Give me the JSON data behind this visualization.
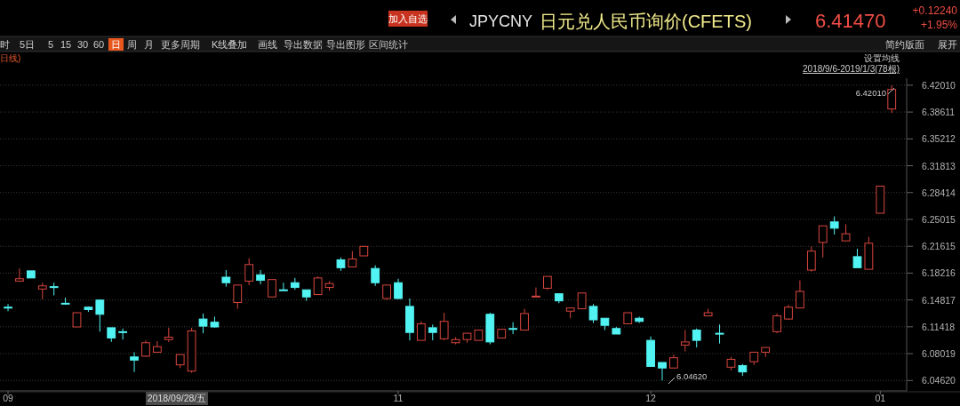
{
  "chart_data": {
    "type": "candlestick",
    "title": "日元兑人民币询价(CFETS)",
    "subtitle": "JPYCNY",
    "categories": [
      "09",
      null,
      null,
      null,
      null,
      null,
      null,
      null,
      null,
      null,
      null,
      null,
      null,
      null,
      null,
      null,
      null,
      null,
      null,
      null,
      null,
      null,
      null,
      null,
      null,
      null,
      null,
      null,
      null,
      null,
      null,
      null,
      null,
      null,
      "11",
      null,
      null,
      null,
      null,
      null,
      null,
      null,
      null,
      null,
      null,
      null,
      null,
      null,
      null,
      null,
      null,
      null,
      null,
      null,
      null,
      null,
      "12",
      null,
      null,
      null,
      null,
      null,
      null,
      null,
      null,
      null,
      null,
      null,
      null,
      null,
      null,
      null,
      null,
      null,
      null,
      null,
      "01",
      null
    ],
    "ohlc": [
      [
        6.139,
        6.143,
        6.134,
        6.138
      ],
      [
        6.172,
        6.188,
        6.172,
        6.175
      ],
      [
        6.185,
        6.185,
        6.176,
        6.176
      ],
      [
        6.162,
        6.17,
        6.149,
        6.166
      ],
      [
        6.165,
        6.17,
        6.154,
        6.164
      ],
      [
        6.144,
        6.151,
        6.142,
        6.143
      ],
      [
        6.114,
        6.132,
        6.114,
        6.132
      ],
      [
        6.139,
        6.14,
        6.133,
        6.136
      ],
      [
        6.148,
        6.149,
        6.108,
        6.13
      ],
      [
        6.113,
        6.113,
        6.095,
        6.1
      ],
      [
        6.108,
        6.112,
        6.098,
        6.107
      ],
      [
        6.076,
        6.082,
        6.057,
        6.072
      ],
      [
        6.077,
        6.097,
        6.076,
        6.094
      ],
      [
        6.082,
        6.096,
        6.082,
        6.089
      ],
      [
        6.098,
        6.113,
        6.095,
        6.101
      ],
      [
        6.066,
        6.079,
        6.062,
        6.079
      ],
      [
        6.058,
        6.113,
        6.056,
        6.109
      ],
      [
        6.124,
        6.131,
        6.106,
        6.115
      ],
      [
        6.12,
        6.127,
        6.113,
        6.114
      ],
      [
        6.177,
        6.186,
        6.165,
        6.17
      ],
      [
        6.145,
        6.167,
        6.137,
        6.167
      ],
      [
        6.172,
        6.201,
        6.167,
        6.193
      ],
      [
        6.18,
        6.186,
        6.168,
        6.173
      ],
      [
        6.152,
        6.174,
        6.152,
        6.174
      ],
      [
        6.161,
        6.17,
        6.16,
        6.16
      ],
      [
        6.17,
        6.176,
        6.161,
        6.164
      ],
      [
        6.161,
        6.161,
        6.147,
        6.152
      ],
      [
        6.155,
        6.178,
        6.155,
        6.176
      ],
      [
        6.164,
        6.172,
        6.16,
        6.169
      ],
      [
        6.199,
        6.202,
        6.185,
        6.189
      ],
      [
        6.19,
        6.21,
        6.19,
        6.2
      ],
      [
        6.204,
        6.216,
        6.204,
        6.216
      ],
      [
        6.188,
        6.192,
        6.166,
        6.17
      ],
      [
        6.15,
        6.167,
        6.148,
        6.167
      ],
      [
        6.17,
        6.175,
        6.149,
        6.15
      ],
      [
        6.14,
        6.15,
        6.097,
        6.107
      ],
      [
        6.097,
        6.121,
        6.097,
        6.118
      ],
      [
        6.113,
        6.117,
        6.097,
        6.107
      ],
      [
        6.099,
        6.132,
        6.097,
        6.121
      ],
      [
        6.094,
        6.101,
        6.092,
        6.098
      ],
      [
        6.098,
        6.106,
        6.094,
        6.106
      ],
      [
        6.097,
        6.11,
        6.097,
        6.11
      ],
      [
        6.13,
        6.132,
        6.092,
        6.095
      ],
      [
        6.1,
        6.111,
        6.1,
        6.111
      ],
      [
        6.112,
        6.12,
        6.105,
        6.111
      ],
      [
        6.11,
        6.137,
        6.11,
        6.131
      ],
      [
        6.152,
        6.164,
        6.152,
        6.153
      ],
      [
        6.163,
        6.178,
        6.161,
        6.178
      ],
      [
        6.156,
        6.156,
        6.144,
        6.147
      ],
      [
        6.134,
        6.138,
        6.125,
        6.138
      ],
      [
        6.137,
        6.157,
        6.137,
        6.157
      ],
      [
        6.14,
        6.143,
        6.119,
        6.123
      ],
      [
        6.125,
        6.125,
        6.11,
        6.116
      ],
      [
        6.112,
        6.114,
        6.105,
        6.105
      ],
      [
        6.118,
        6.132,
        6.118,
        6.132
      ],
      [
        6.125,
        6.127,
        6.119,
        6.121
      ],
      [
        6.097,
        6.102,
        6.064,
        6.064
      ],
      [
        6.069,
        6.069,
        6.0462,
        6.062
      ],
      [
        6.062,
        6.079,
        6.062,
        6.075
      ],
      [
        6.091,
        6.11,
        6.083,
        6.095
      ],
      [
        6.11,
        6.112,
        6.088,
        6.097
      ],
      [
        6.128,
        6.137,
        6.128,
        6.132
      ],
      [
        6.106,
        6.117,
        6.093,
        6.105
      ],
      [
        6.063,
        6.076,
        6.059,
        6.073
      ],
      [
        6.065,
        6.067,
        6.052,
        6.057
      ],
      [
        6.07,
        6.082,
        6.066,
        6.082
      ],
      [
        6.082,
        6.088,
        6.076,
        6.088
      ],
      [
        6.108,
        6.131,
        6.106,
        6.128
      ],
      [
        6.124,
        6.142,
        6.123,
        6.139
      ],
      [
        6.138,
        6.173,
        6.138,
        6.159
      ],
      [
        6.186,
        6.216,
        6.184,
        6.21
      ],
      [
        6.221,
        6.242,
        6.202,
        6.242
      ],
      [
        6.247,
        6.254,
        6.231,
        6.239
      ],
      [
        6.223,
        6.244,
        6.223,
        6.232
      ],
      [
        6.203,
        6.213,
        6.189,
        6.189
      ],
      [
        6.187,
        6.228,
        6.187,
        6.22
      ],
      [
        6.258,
        6.2923,
        6.258,
        6.2923
      ],
      [
        6.39,
        6.4201,
        6.385,
        6.4147
      ]
    ],
    "colors": [
      "#52f3f3",
      "#d9463e",
      "#52f3f3",
      "#d9463e",
      "#52f3f3",
      "#52f3f3",
      "#d9463e",
      "#52f3f3",
      "#52f3f3",
      "#52f3f3",
      "#52f3f3",
      "#52f3f3",
      "#d9463e",
      "#d9463e",
      "#d9463e",
      "#d9463e",
      "#d9463e",
      "#52f3f3",
      "#52f3f3",
      "#52f3f3",
      "#d9463e",
      "#d9463e",
      "#52f3f3",
      "#d9463e",
      "#52f3f3",
      "#52f3f3",
      "#52f3f3",
      "#d9463e",
      "#d9463e",
      "#52f3f3",
      "#d9463e",
      "#d9463e",
      "#52f3f3",
      "#d9463e",
      "#52f3f3",
      "#52f3f3",
      "#d9463e",
      "#52f3f3",
      "#d9463e",
      "#d9463e",
      "#d9463e",
      "#d9463e",
      "#52f3f3",
      "#d9463e",
      "#52f3f3",
      "#d9463e",
      "#d9463e",
      "#d9463e",
      "#52f3f3",
      "#d9463e",
      "#d9463e",
      "#52f3f3",
      "#52f3f3",
      "#52f3f3",
      "#d9463e",
      "#52f3f3",
      "#52f3f3",
      "#52f3f3",
      "#d9463e",
      "#d9463e",
      "#52f3f3",
      "#d9463e",
      "#52f3f3",
      "#d9463e",
      "#52f3f3",
      "#d9463e",
      "#d9463e",
      "#d9463e",
      "#d9463e",
      "#d9463e",
      "#d9463e",
      "#d9463e",
      "#52f3f3",
      "#d9463e",
      "#52f3f3",
      "#d9463e",
      "#d9463e",
      "#d9463e"
    ],
    "ylim": [
      6.033,
      6.429
    ],
    "yticks": [
      {
        "value": 6.4201,
        "label": "6.42010"
      },
      {
        "value": 6.38611,
        "label": "6.38611"
      },
      {
        "value": 6.35212,
        "label": "6.35212"
      },
      {
        "value": 6.31813,
        "label": "6.31813"
      },
      {
        "value": 6.28414,
        "label": "6.28414"
      },
      {
        "value": 6.25015,
        "label": "6.25015"
      },
      {
        "value": 6.21615,
        "label": "6.21615"
      },
      {
        "value": 6.18216,
        "label": "6.18216"
      },
      {
        "value": 6.14817,
        "label": "6.14817"
      },
      {
        "value": 6.11418,
        "label": "6.11418"
      },
      {
        "value": 6.08019,
        "label": "6.08019"
      },
      {
        "value": 6.0462,
        "label": "6.04620"
      }
    ],
    "grid": "y",
    "annotations": [
      "加入自选",
      "6.41470",
      "+0.12240",
      "+1.95%",
      "时",
      "5日",
      "5",
      "15",
      "30",
      "60",
      "日",
      "周",
      "月",
      "更多周期",
      "K线叠加",
      "画线",
      "导出数据",
      "导出图形",
      "区间统计",
      "简约版面",
      "展开",
      "日线)",
      "设置均线",
      "2018/9/6-2019/1/3(78根)",
      "2018/09/28/五",
      "6.42010",
      "6.04620"
    ]
  }
}
